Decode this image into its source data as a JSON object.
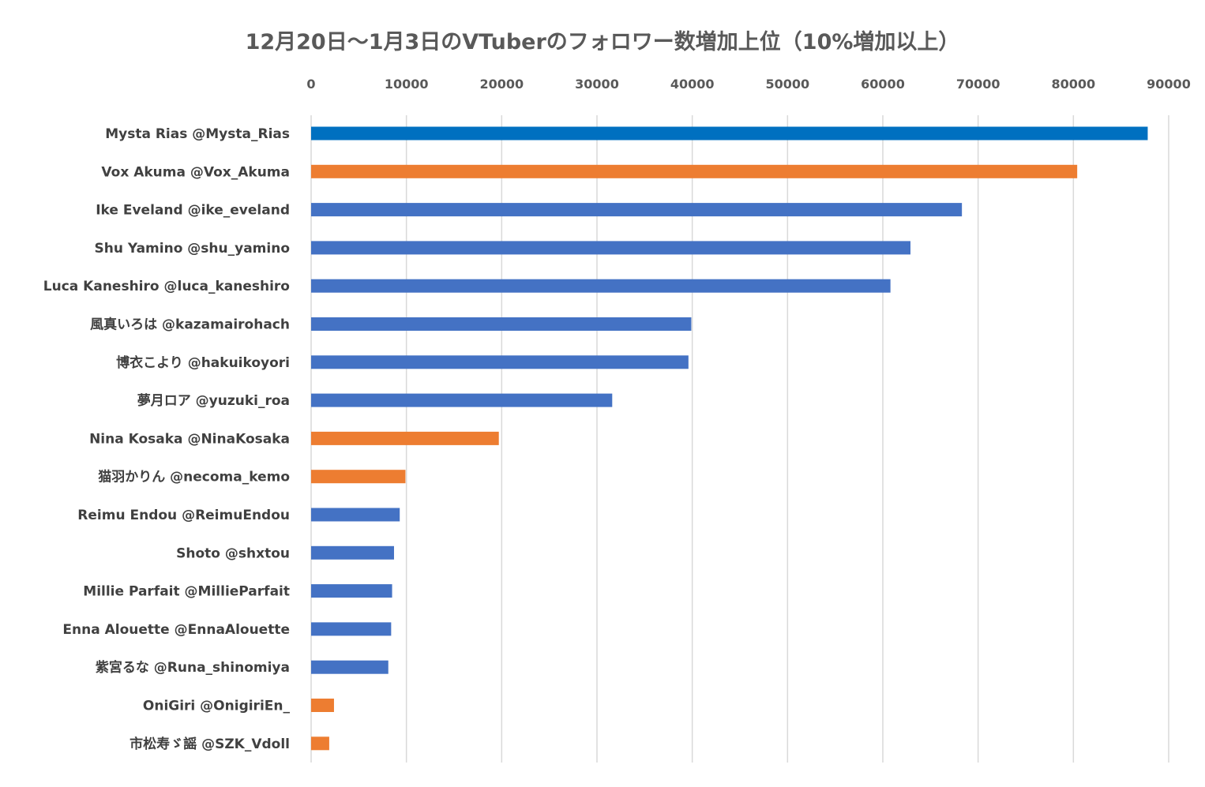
{
  "chart_data": {
    "type": "bar",
    "orientation": "horizontal",
    "title": "12月20日〜1月3日のVTuberのフォロワー数増加上位（10%増加以上）",
    "xlabel": "",
    "ylabel": "",
    "xlim": [
      0,
      90000
    ],
    "x_ticks": [
      "0",
      "10000",
      "20000",
      "30000",
      "40000",
      "50000",
      "60000",
      "70000",
      "80000",
      "90000"
    ],
    "grid": true,
    "legend": "none",
    "categories": [
      "Mysta Rias @Mysta_Rias",
      "Vox Akuma @Vox_Akuma",
      "Ike Eveland @ike_eveland",
      "Shu Yamino @shu_yamino",
      "Luca Kaneshiro @luca_kaneshiro",
      "風真いろは @kazamairohach",
      "博衣こより @hakuikoyori",
      "夢月ロア @yuzuki_roa",
      "Nina Kosaka @NinaKosaka",
      "猫羽かりん @necoma_kemo",
      "Reimu Endou @ReimuEndou",
      "Shoto @shxtou",
      "Millie Parfait @MillieParfait",
      "Enna Alouette @EnnaAlouette",
      "紫宮るな @Runa_shinomiya",
      "OniGiri @OnigiriEn_",
      "市松寿ゞ謡 @SZK_Vdoll"
    ],
    "values": [
      87800,
      80400,
      68300,
      62900,
      60800,
      39900,
      39600,
      31600,
      19700,
      9900,
      9300,
      8700,
      8500,
      8400,
      8100,
      2400,
      1900
    ],
    "bar_colors": [
      "#0070c0",
      "#ed7d31",
      "#4472c4",
      "#4472c4",
      "#4472c4",
      "#4472c4",
      "#4472c4",
      "#4472c4",
      "#ed7d31",
      "#ed7d31",
      "#4472c4",
      "#4472c4",
      "#4472c4",
      "#4472c4",
      "#4472c4",
      "#ed7d31",
      "#ed7d31"
    ]
  }
}
